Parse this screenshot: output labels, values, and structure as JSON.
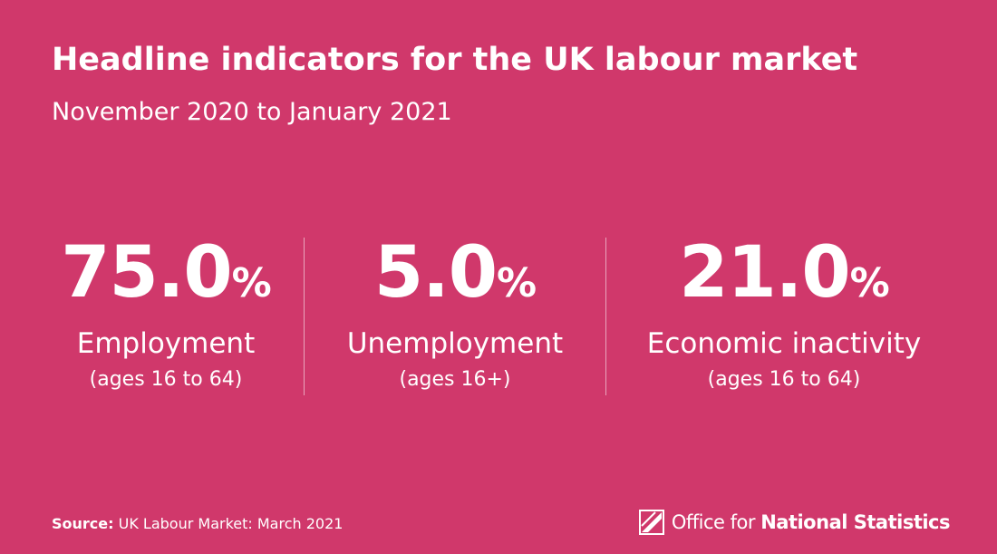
{
  "header": {
    "title": "Headline indicators for the UK labour market",
    "subtitle": "November 2020 to January 2021"
  },
  "indicators": [
    {
      "value": "75.0",
      "unit": "%",
      "label": "Employment",
      "note": "(ages 16 to 64)"
    },
    {
      "value": "5.0",
      "unit": "%",
      "label": "Unemployment",
      "note": "(ages 16+)"
    },
    {
      "value": "21.0",
      "unit": "%",
      "label": "Economic inactivity",
      "note": "(ages 16 to 64)"
    }
  ],
  "footer": {
    "source_label": "Source:",
    "source": "UK Labour Market: March 2021",
    "logo_regular": "Office for",
    "logo_bold": "National Statistics"
  }
}
